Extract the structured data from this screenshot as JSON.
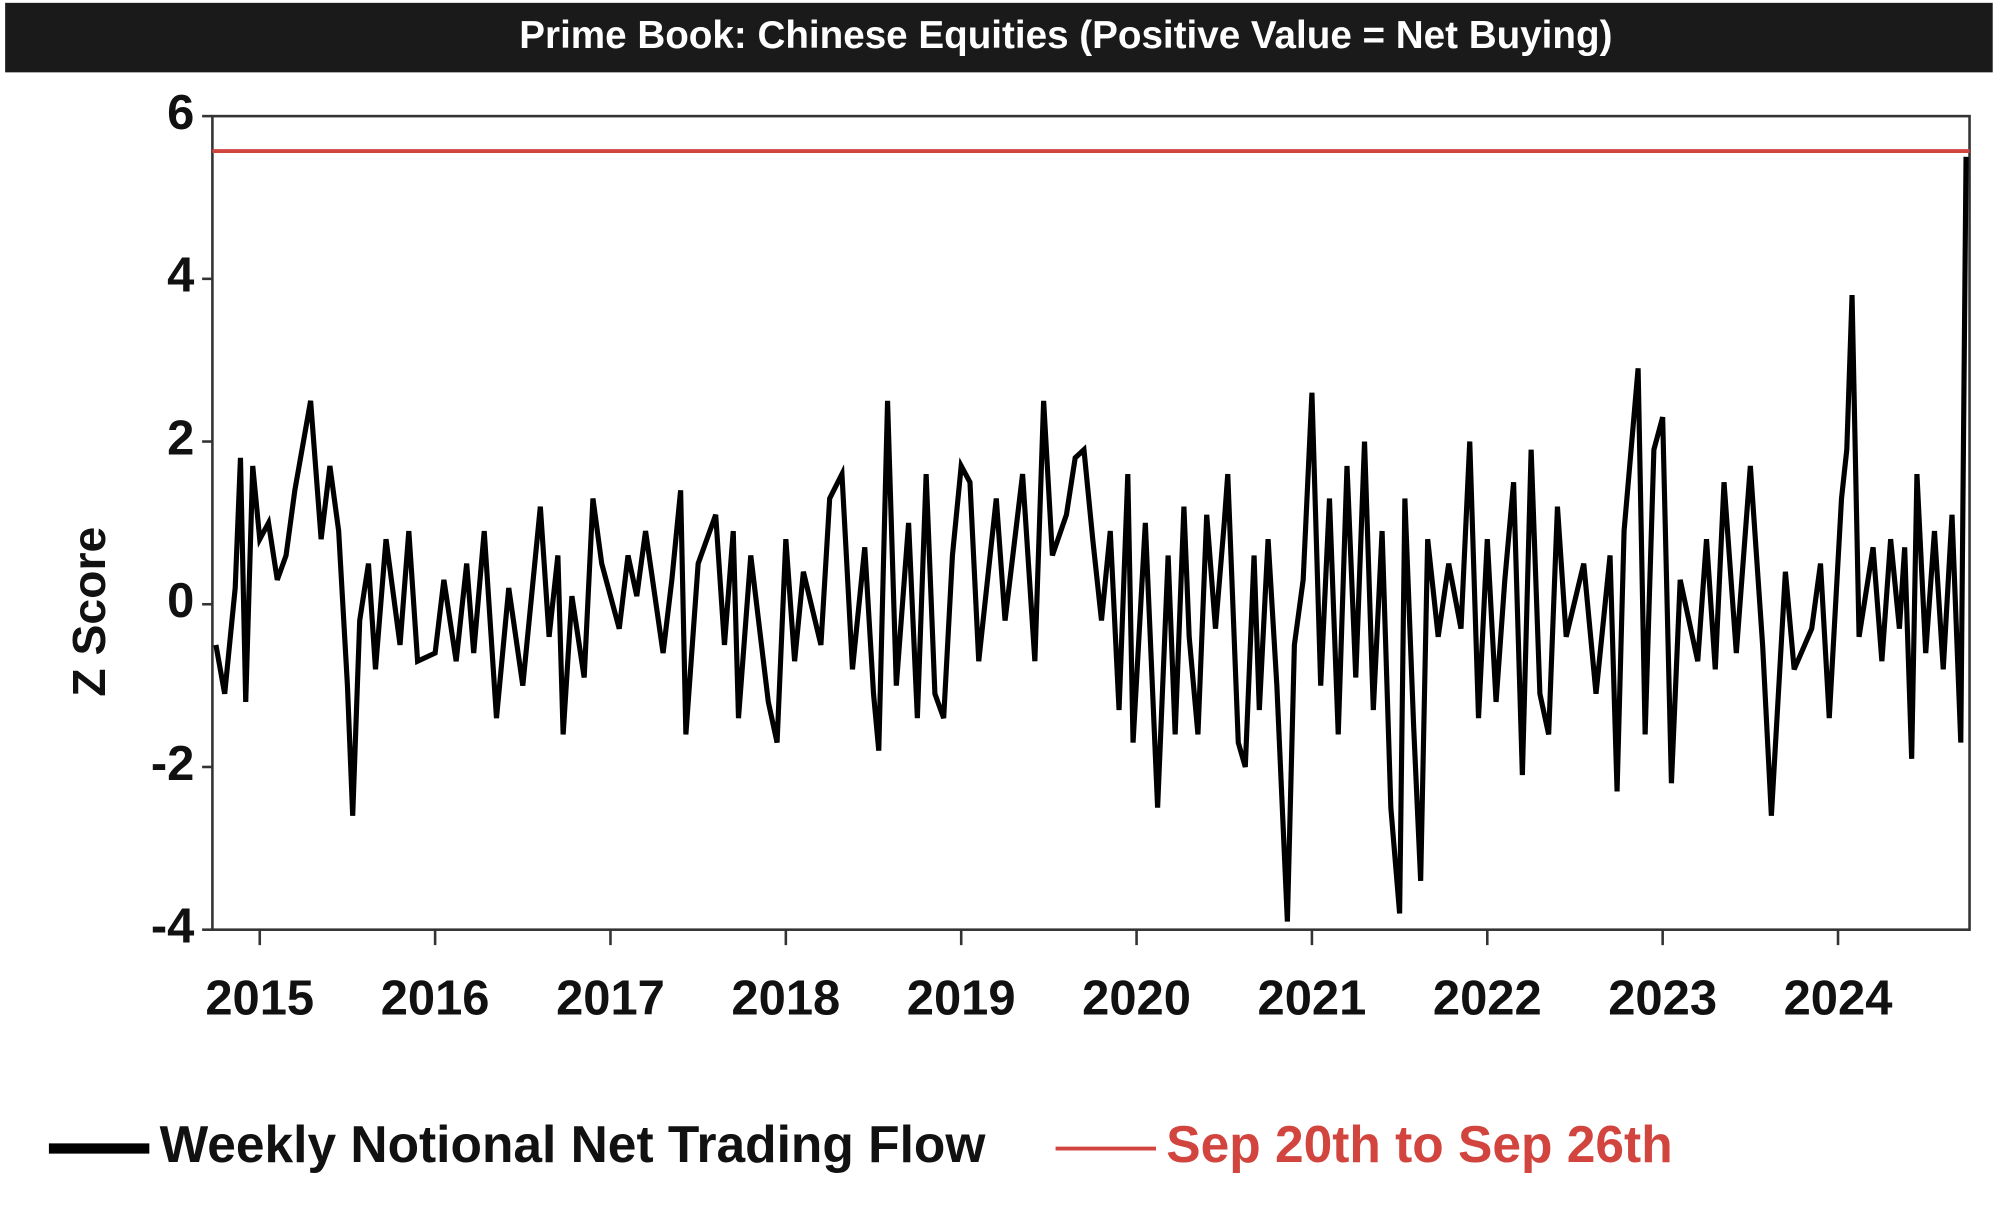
{
  "chart_data": {
    "type": "line",
    "title": "Prime Book: Chinese Equities (Positive Value = Net Buying)",
    "ylabel": "Z Score",
    "xlim": [
      2014.73,
      2024.75
    ],
    "xticks": [
      2015,
      2016,
      2017,
      2018,
      2019,
      2020,
      2021,
      2022,
      2023,
      2024
    ],
    "ylim": [
      -4,
      6
    ],
    "yticks": [
      -4,
      -2,
      0,
      2,
      4,
      6
    ],
    "legend": "bottom-left",
    "series": [
      {
        "name": "Weekly Notional Net Trading Flow",
        "color": "#000000",
        "x": [
          2014.75,
          2014.8,
          2014.86,
          2014.89,
          2014.92,
          2014.96,
          2015.0,
          2015.05,
          2015.1,
          2015.15,
          2015.2,
          2015.29,
          2015.35,
          2015.4,
          2015.45,
          2015.5,
          2015.53,
          2015.57,
          2015.62,
          2015.66,
          2015.72,
          2015.8,
          2015.85,
          2015.9,
          2016.0,
          2016.05,
          2016.12,
          2016.18,
          2016.22,
          2016.28,
          2016.35,
          2016.42,
          2016.5,
          2016.55,
          2016.6,
          2016.65,
          2016.7,
          2016.73,
          2016.78,
          2016.85,
          2016.9,
          2016.95,
          2017.05,
          2017.1,
          2017.15,
          2017.2,
          2017.3,
          2017.35,
          2017.4,
          2017.43,
          2017.5,
          2017.55,
          2017.6,
          2017.65,
          2017.7,
          2017.73,
          2017.8,
          2017.9,
          2017.95,
          2018.0,
          2018.05,
          2018.1,
          2018.2,
          2018.25,
          2018.32,
          2018.38,
          2018.45,
          2018.5,
          2018.53,
          2018.58,
          2018.63,
          2018.7,
          2018.75,
          2018.8,
          2018.85,
          2018.9,
          2018.95,
          2019.0,
          2019.05,
          2019.1,
          2019.2,
          2019.25,
          2019.35,
          2019.42,
          2019.47,
          2019.52,
          2019.6,
          2019.65,
          2019.7,
          2019.75,
          2019.8,
          2019.85,
          2019.9,
          2019.95,
          2019.98,
          2020.05,
          2020.12,
          2020.18,
          2020.22,
          2020.27,
          2020.3,
          2020.35,
          2020.4,
          2020.45,
          2020.5,
          2020.52,
          2020.58,
          2020.62,
          2020.67,
          2020.7,
          2020.75,
          2020.8,
          2020.86,
          2020.9,
          2020.95,
          2021.0,
          2021.05,
          2021.1,
          2021.15,
          2021.2,
          2021.25,
          2021.3,
          2021.35,
          2021.4,
          2021.45,
          2021.5,
          2021.53,
          2021.58,
          2021.62,
          2021.66,
          2021.72,
          2021.78,
          2021.85,
          2021.9,
          2021.95,
          2022.0,
          2022.05,
          2022.1,
          2022.15,
          2022.2,
          2022.25,
          2022.3,
          2022.35,
          2022.4,
          2022.45,
          2022.55,
          2022.62,
          2022.7,
          2022.74,
          2022.78,
          2022.86,
          2022.9,
          2022.95,
          2023.0,
          2023.05,
          2023.1,
          2023.2,
          2023.25,
          2023.3,
          2023.35,
          2023.42,
          2023.5,
          2023.57,
          2023.62,
          2023.7,
          2023.75,
          2023.85,
          2023.9,
          2023.95,
          2024.02,
          2024.05,
          2024.08,
          2024.12,
          2024.2,
          2024.25,
          2024.3,
          2024.35,
          2024.38,
          2024.42,
          2024.45,
          2024.5,
          2024.55,
          2024.6,
          2024.65,
          2024.7,
          2024.73
        ],
        "values": [
          -0.5,
          -1.1,
          0.2,
          1.8,
          -1.2,
          1.7,
          0.8,
          1.0,
          0.3,
          0.6,
          1.4,
          2.5,
          0.8,
          1.7,
          0.9,
          -1.0,
          -2.6,
          -0.2,
          0.5,
          -0.8,
          0.8,
          -0.5,
          0.9,
          -0.7,
          -0.6,
          0.3,
          -0.7,
          0.5,
          -0.6,
          0.9,
          -1.4,
          0.2,
          -1.0,
          0.1,
          1.2,
          -0.4,
          0.6,
          -1.6,
          0.1,
          -0.9,
          1.3,
          0.5,
          -0.3,
          0.6,
          0.1,
          0.9,
          -0.6,
          0.3,
          1.4,
          -1.6,
          0.5,
          0.8,
          1.1,
          -0.5,
          0.9,
          -1.4,
          0.6,
          -1.2,
          -1.7,
          0.8,
          -0.7,
          0.4,
          -0.5,
          1.3,
          1.6,
          -0.8,
          0.7,
          -1.1,
          -1.8,
          2.5,
          -1.0,
          1.0,
          -1.4,
          1.6,
          -1.1,
          -1.4,
          0.6,
          1.7,
          1.5,
          -0.7,
          1.3,
          -0.2,
          1.6,
          -0.7,
          2.5,
          0.6,
          1.1,
          1.8,
          1.9,
          0.8,
          -0.2,
          0.9,
          -1.3,
          1.6,
          -1.7,
          1.0,
          -2.5,
          0.6,
          -1.6,
          1.2,
          -0.4,
          -1.6,
          1.1,
          -0.3,
          1.0,
          1.6,
          -1.7,
          -2.0,
          0.6,
          -1.3,
          0.8,
          -1.0,
          -3.9,
          -0.5,
          0.3,
          2.6,
          -1.0,
          1.3,
          -1.6,
          1.7,
          -0.9,
          2.0,
          -1.3,
          0.9,
          -2.5,
          -3.8,
          1.3,
          -1.5,
          -3.4,
          0.8,
          -0.4,
          0.5,
          -0.3,
          2.0,
          -1.4,
          0.8,
          -1.2,
          0.3,
          1.5,
          -2.1,
          1.9,
          -1.1,
          -1.6,
          1.2,
          -0.4,
          0.5,
          -1.1,
          0.6,
          -2.3,
          0.9,
          2.9,
          -1.6,
          1.9,
          2.3,
          -2.2,
          0.3,
          -0.7,
          0.8,
          -0.8,
          1.5,
          -0.6,
          1.7,
          -0.5,
          -2.6,
          0.4,
          -0.8,
          -0.3,
          0.5,
          -1.4,
          1.3,
          1.9,
          3.8,
          -0.4,
          0.7,
          -0.7,
          0.8,
          -0.3,
          0.7,
          -1.9,
          1.6,
          -0.6,
          0.9,
          -0.8,
          1.1,
          -1.7,
          5.5
        ]
      },
      {
        "name": "Sep 20th to Sep 26th",
        "color": "#d2453f",
        "x": [
          2014.73,
          2024.75
        ],
        "values": [
          5.57,
          5.57
        ]
      }
    ]
  }
}
